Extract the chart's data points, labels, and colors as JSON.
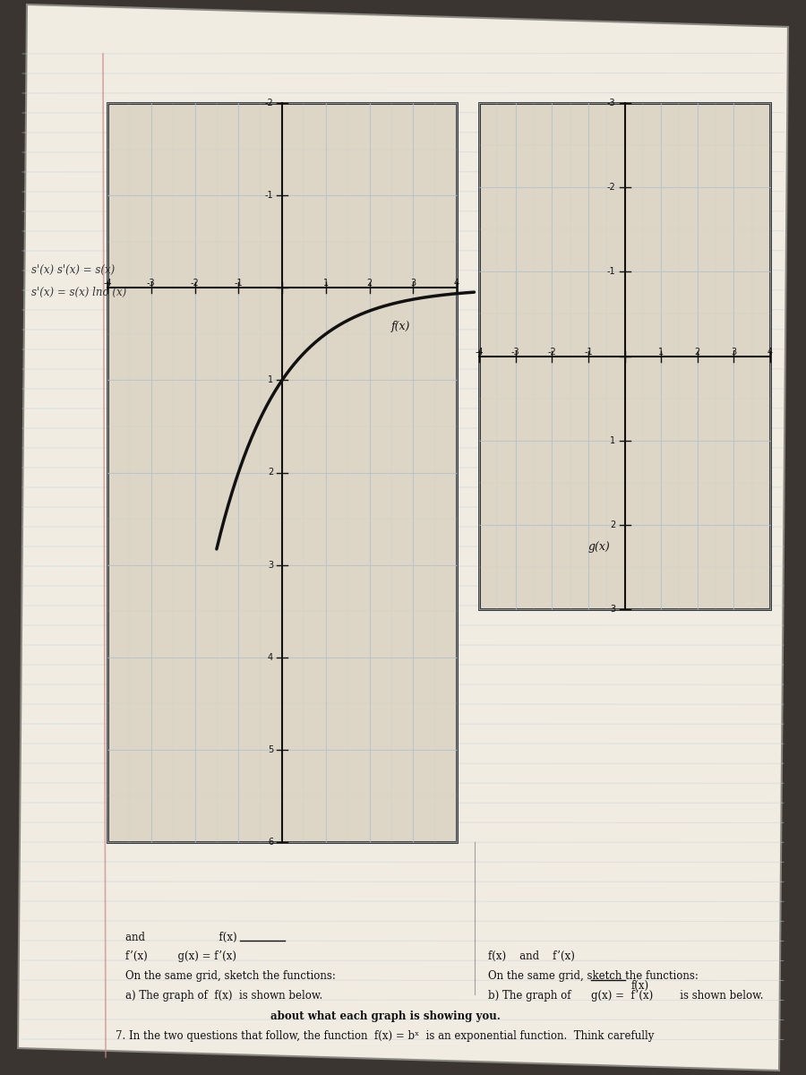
{
  "title_line1": "7. In the two questions that follow, the function  f(x) = bˣ  is an exponential function.  Think carefully",
  "title_line2": "about what each graph is showing you.",
  "part_a_line1": "a) The graph of  f(x)  is shown below.",
  "part_a_line2": "On the same grid, sketch the functions:",
  "part_a_line3a": "f’(x)",
  "part_a_line3b": "g(x) =  f’(x)",
  "part_a_line4": "and                       f(x)",
  "part_b_line1": "b) The graph of      g(x) =  f’(x)        is shown below.",
  "part_b_line1b": "f(x)",
  "part_b_line2": "On the same grid, sketch the functions:",
  "part_b_line3": "f(x)   and   f’(x)",
  "fx_label": "f(x)",
  "gx_label": "g(x)",
  "paper_color": "#e8e3d8",
  "lined_color": "#b8c8d5",
  "grid_bg_a": "#ddd8cc",
  "grid_bg_b": "#ddd8cc",
  "grid_line_color": "#aabbc8",
  "curve_color": "#111111",
  "text_color": "#111111",
  "border_color": "#222222",
  "shadow_color": "#555555",
  "dark_bg": "#2a2a2a"
}
